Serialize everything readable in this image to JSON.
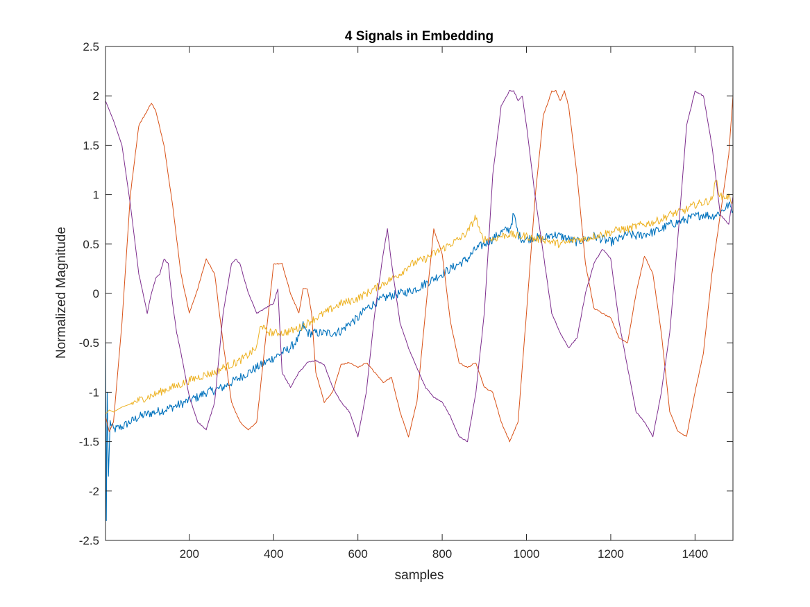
{
  "chart_data": {
    "type": "line",
    "title": "4 Signals in Embedding",
    "xlabel": "samples",
    "ylabel": "Normalized Magnitude",
    "xlim": [
      1,
      1490
    ],
    "ylim": [
      -2.5,
      2.5
    ],
    "xticks": [
      200,
      400,
      600,
      800,
      1000,
      1200,
      1400
    ],
    "yticks": [
      -2.5,
      -2,
      -1.5,
      -1,
      -0.5,
      0,
      0.5,
      1,
      1.5,
      2,
      2.5
    ],
    "xtick_labels": [
      "200",
      "400",
      "600",
      "800",
      "1000",
      "1200",
      "1400"
    ],
    "ytick_labels": [
      "-2.5",
      "-2",
      "-1.5",
      "-1",
      "-0.5",
      "0",
      "0.5",
      "1",
      "1.5",
      "2",
      "2.5"
    ],
    "grid": false,
    "legend": "none",
    "series": [
      {
        "color": "#0072BD",
        "x": [
          1,
          3,
          5,
          8,
          12,
          20,
          40,
          60,
          80,
          100,
          120,
          140,
          160,
          180,
          200,
          220,
          240,
          260,
          280,
          300,
          320,
          340,
          360,
          380,
          400,
          420,
          440,
          460,
          470,
          480,
          500,
          520,
          540,
          560,
          580,
          600,
          620,
          640,
          660,
          680,
          700,
          720,
          740,
          760,
          780,
          800,
          820,
          840,
          860,
          880,
          900,
          920,
          940,
          960,
          970,
          980,
          990,
          1000,
          1020,
          1040,
          1060,
          1080,
          1100,
          1120,
          1140,
          1160,
          1180,
          1200,
          1220,
          1240,
          1260,
          1280,
          1300,
          1320,
          1340,
          1360,
          1380,
          1400,
          1420,
          1440,
          1460,
          1480,
          1490
        ],
        "y": [
          -0.5,
          -2.3,
          -1.0,
          -1.85,
          -1.3,
          -1.38,
          -1.35,
          -1.3,
          -1.25,
          -1.22,
          -1.2,
          -1.18,
          -1.15,
          -1.12,
          -1.08,
          -1.05,
          -1.0,
          -0.98,
          -0.95,
          -0.9,
          -0.85,
          -0.8,
          -0.75,
          -0.7,
          -0.65,
          -0.6,
          -0.55,
          -0.45,
          -0.32,
          -0.4,
          -0.4,
          -0.4,
          -0.4,
          -0.38,
          -0.3,
          -0.25,
          -0.15,
          -0.1,
          -0.05,
          -0.02,
          0.0,
          0.02,
          0.05,
          0.1,
          0.15,
          0.2,
          0.25,
          0.3,
          0.35,
          0.45,
          0.5,
          0.55,
          0.62,
          0.65,
          0.8,
          0.6,
          0.55,
          0.55,
          0.57,
          0.55,
          0.6,
          0.58,
          0.55,
          0.52,
          0.55,
          0.58,
          0.55,
          0.52,
          0.55,
          0.6,
          0.58,
          0.6,
          0.62,
          0.65,
          0.7,
          0.72,
          0.75,
          0.78,
          0.8,
          0.78,
          0.82,
          0.9,
          0.84
        ]
      },
      {
        "color": "#D95319",
        "x": [
          1,
          10,
          20,
          40,
          60,
          80,
          100,
          110,
          120,
          140,
          160,
          180,
          200,
          220,
          240,
          260,
          280,
          300,
          320,
          340,
          360,
          380,
          400,
          420,
          440,
          460,
          470,
          480,
          490,
          500,
          520,
          540,
          560,
          580,
          600,
          620,
          640,
          660,
          680,
          700,
          720,
          740,
          760,
          780,
          800,
          820,
          840,
          860,
          880,
          900,
          920,
          940,
          960,
          980,
          1000,
          1020,
          1040,
          1060,
          1070,
          1080,
          1090,
          1100,
          1120,
          1140,
          1160,
          1180,
          1200,
          1220,
          1240,
          1260,
          1280,
          1300,
          1320,
          1340,
          1360,
          1380,
          1400,
          1420,
          1440,
          1460,
          1480,
          1490
        ],
        "y": [
          -1.25,
          -1.4,
          -1.3,
          -0.3,
          1.0,
          1.7,
          1.85,
          1.93,
          1.85,
          1.5,
          0.9,
          0.2,
          -0.2,
          0.05,
          0.35,
          0.2,
          -0.5,
          -1.1,
          -1.3,
          -1.38,
          -1.3,
          -0.5,
          0.3,
          0.3,
          0.0,
          -0.2,
          0.05,
          0.05,
          -0.2,
          -0.8,
          -1.1,
          -1.0,
          -0.72,
          -0.7,
          -0.75,
          -0.7,
          -0.8,
          -0.9,
          -0.85,
          -1.2,
          -1.45,
          -1.1,
          -0.2,
          0.65,
          0.4,
          -0.3,
          -0.7,
          -0.75,
          -0.7,
          -0.95,
          -1.0,
          -1.3,
          -1.5,
          -1.3,
          -0.2,
          0.95,
          1.8,
          2.05,
          2.05,
          1.95,
          2.05,
          1.9,
          1.2,
          0.3,
          -0.15,
          -0.2,
          -0.25,
          -0.45,
          -0.5,
          0.0,
          0.38,
          0.2,
          -0.4,
          -1.2,
          -1.4,
          -1.45,
          -1.0,
          -0.6,
          0.2,
          0.8,
          1.4,
          2.0
        ]
      },
      {
        "color": "#EDB120",
        "x": [
          1,
          10,
          20,
          40,
          60,
          80,
          100,
          120,
          140,
          160,
          180,
          200,
          220,
          240,
          260,
          280,
          300,
          320,
          340,
          360,
          370,
          380,
          400,
          420,
          440,
          460,
          480,
          500,
          520,
          540,
          560,
          580,
          600,
          620,
          640,
          660,
          680,
          700,
          720,
          740,
          760,
          780,
          800,
          820,
          840,
          860,
          880,
          890,
          900,
          920,
          940,
          960,
          980,
          1000,
          1020,
          1040,
          1060,
          1080,
          1100,
          1120,
          1140,
          1160,
          1180,
          1200,
          1220,
          1240,
          1260,
          1280,
          1300,
          1320,
          1340,
          1360,
          1380,
          1400,
          1420,
          1440,
          1450,
          1460,
          1480,
          1490
        ],
        "y": [
          -1.22,
          -1.18,
          -1.2,
          -1.15,
          -1.12,
          -1.08,
          -1.05,
          -1.02,
          -0.98,
          -0.95,
          -0.92,
          -0.88,
          -0.85,
          -0.82,
          -0.8,
          -0.75,
          -0.72,
          -0.68,
          -0.62,
          -0.55,
          -0.3,
          -0.38,
          -0.4,
          -0.4,
          -0.38,
          -0.35,
          -0.3,
          -0.25,
          -0.2,
          -0.15,
          -0.1,
          -0.08,
          -0.05,
          0.0,
          0.05,
          0.1,
          0.15,
          0.2,
          0.28,
          0.32,
          0.35,
          0.4,
          0.45,
          0.5,
          0.55,
          0.62,
          0.78,
          0.6,
          0.55,
          0.55,
          0.58,
          0.6,
          0.58,
          0.58,
          0.55,
          0.55,
          0.52,
          0.5,
          0.52,
          0.55,
          0.55,
          0.58,
          0.6,
          0.62,
          0.65,
          0.65,
          0.68,
          0.7,
          0.72,
          0.75,
          0.8,
          0.82,
          0.85,
          0.9,
          0.92,
          0.95,
          1.15,
          0.98,
          0.98,
          0.92
        ]
      },
      {
        "color": "#7E2F8E",
        "x": [
          1,
          20,
          40,
          60,
          80,
          100,
          110,
          120,
          130,
          140,
          150,
          160,
          170,
          180,
          200,
          220,
          240,
          260,
          280,
          300,
          310,
          320,
          340,
          360,
          380,
          400,
          410,
          420,
          440,
          460,
          480,
          500,
          520,
          540,
          560,
          580,
          600,
          620,
          640,
          660,
          670,
          680,
          700,
          720,
          740,
          760,
          780,
          800,
          820,
          840,
          860,
          880,
          900,
          920,
          940,
          960,
          970,
          980,
          990,
          1000,
          1020,
          1040,
          1060,
          1080,
          1100,
          1120,
          1140,
          1160,
          1180,
          1200,
          1220,
          1240,
          1260,
          1280,
          1300,
          1320,
          1340,
          1360,
          1380,
          1400,
          1420,
          1440,
          1460,
          1480,
          1490
        ],
        "y": [
          1.95,
          1.75,
          1.5,
          0.9,
          0.2,
          -0.2,
          0.0,
          0.15,
          0.2,
          0.35,
          0.3,
          -0.1,
          -0.4,
          -0.6,
          -1.05,
          -1.3,
          -1.38,
          -1.1,
          -0.2,
          0.3,
          0.35,
          0.3,
          0.0,
          -0.2,
          -0.15,
          -0.1,
          0.05,
          -0.8,
          -0.95,
          -0.8,
          -0.7,
          -0.68,
          -0.72,
          -0.95,
          -1.1,
          -1.2,
          -1.45,
          -1.0,
          -0.2,
          0.4,
          0.65,
          0.3,
          -0.3,
          -0.55,
          -0.75,
          -0.95,
          -1.05,
          -1.1,
          -1.25,
          -1.45,
          -1.5,
          -1.0,
          -0.2,
          1.2,
          1.9,
          2.05,
          2.05,
          1.95,
          2.0,
          1.7,
          1.0,
          0.4,
          -0.2,
          -0.4,
          -0.55,
          -0.45,
          0.0,
          0.3,
          0.45,
          0.35,
          -0.3,
          -0.75,
          -1.2,
          -1.3,
          -1.45,
          -1.0,
          -0.4,
          0.6,
          1.7,
          2.05,
          2.0,
          1.5,
          0.8,
          0.7,
          0.98
        ]
      }
    ]
  }
}
